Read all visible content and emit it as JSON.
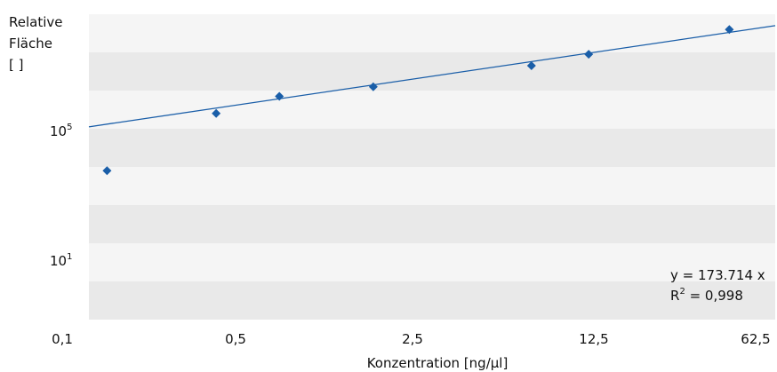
{
  "chart_data": {
    "type": "scatter",
    "y_axis_label_lines": [
      "Relative",
      "Fläche",
      "[ ]"
    ],
    "xlabel": "Konzentration [ng/µl]",
    "x_tick_labels": [
      "0,1",
      "0,5",
      "2,5",
      "12,5",
      "62,5"
    ],
    "x_ticks": [
      0.1,
      0.5,
      2.5,
      12.5,
      62.5
    ],
    "y_tick_labels": [
      {
        "base": "10",
        "exp": "5"
      },
      {
        "base": "10",
        "exp": "1"
      }
    ],
    "x_scale": "log",
    "x_range": [
      0.1,
      100
    ],
    "y_range_bands": 8,
    "points": [
      {
        "x": 0.12,
        "y": 3.9
      },
      {
        "x": 0.36,
        "y": 5.4
      },
      {
        "x": 0.68,
        "y": 5.85
      },
      {
        "x": 1.75,
        "y": 6.1
      },
      {
        "x": 8.6,
        "y": 6.65
      },
      {
        "x": 15.3,
        "y": 6.95
      },
      {
        "x": 63.0,
        "y": 7.6
      }
    ],
    "trendline": {
      "x": [
        0.1,
        100
      ],
      "y": [
        5.05,
        7.7
      ]
    },
    "equation": "y = 173.714 x",
    "r2": {
      "base": "R",
      "exp": "2",
      "rest": " = 0,998"
    },
    "band_colors": [
      "#f5f5f5",
      "#e9e9e9"
    ],
    "marker_color": "#1a5ea8",
    "line_color": "#1a5ea8"
  }
}
